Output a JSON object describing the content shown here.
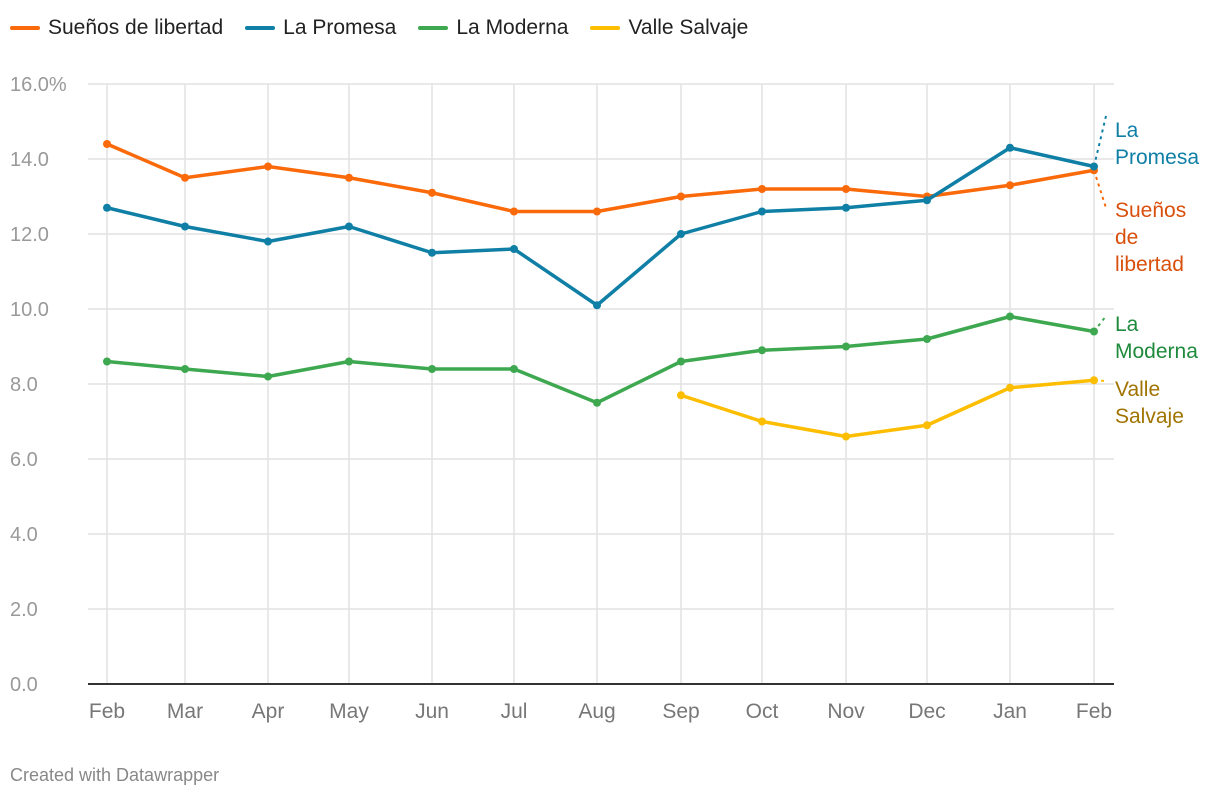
{
  "chart_data": {
    "type": "line",
    "title": "",
    "xlabel": "",
    "ylabel": "",
    "categories": [
      "Feb",
      "Mar",
      "Apr",
      "May",
      "Jun",
      "Jul",
      "Aug",
      "Sep",
      "Oct",
      "Nov",
      "Dec",
      "Jan",
      "Feb"
    ],
    "yticks": [
      "0.0",
      "2.0",
      "4.0",
      "6.0",
      "8.0",
      "10.0",
      "12.0",
      "14.0",
      "16.0%"
    ],
    "ylim": [
      0,
      16
    ],
    "grid": true,
    "legend_position": "top-left",
    "series": [
      {
        "name": "Sueños de libertad",
        "color": "#fa6a0a",
        "label_color": "#d94f0c",
        "end_label_lines": [
          "Sueños",
          "de",
          "libertad"
        ],
        "values": [
          14.4,
          13.5,
          13.8,
          13.5,
          13.1,
          12.6,
          12.6,
          13.0,
          13.2,
          13.2,
          13.0,
          13.3,
          13.7
        ]
      },
      {
        "name": "La Promesa",
        "color": "#0f7fa6",
        "label_color": "#0f7fa6",
        "end_label_lines": [
          "La",
          "Promesa"
        ],
        "values": [
          12.7,
          12.2,
          11.8,
          12.2,
          11.5,
          11.6,
          10.1,
          12.0,
          12.6,
          12.7,
          12.9,
          14.3,
          13.8
        ]
      },
      {
        "name": "La Moderna",
        "color": "#3ea850",
        "label_color": "#1e8a3c",
        "end_label_lines": [
          "La",
          "Moderna"
        ],
        "values": [
          8.6,
          8.4,
          8.2,
          8.6,
          8.4,
          8.4,
          7.5,
          8.6,
          8.9,
          9.0,
          9.2,
          9.8,
          9.4
        ]
      },
      {
        "name": "Valle Salvaje",
        "color": "#fdbd00",
        "label_color": "#a07400",
        "end_label_lines": [
          "Valle",
          "Salvaje"
        ],
        "values": [
          null,
          null,
          null,
          null,
          null,
          null,
          null,
          7.7,
          7.0,
          6.6,
          6.9,
          7.9,
          8.1
        ]
      }
    ]
  },
  "footer": "Created with Datawrapper"
}
